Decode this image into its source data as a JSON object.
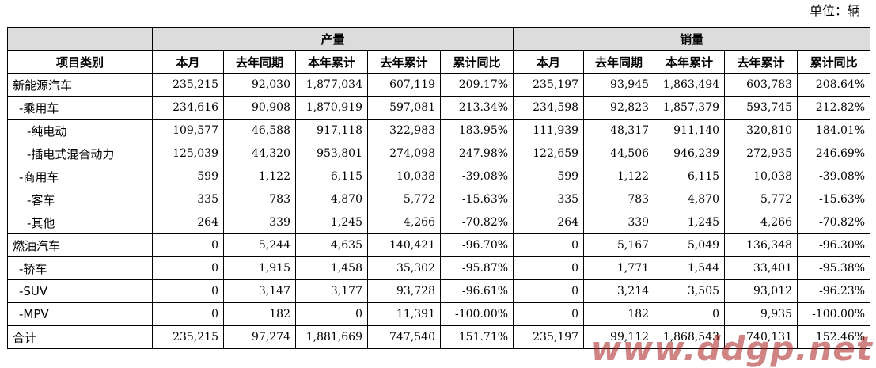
{
  "unit_label": "单位：辆",
  "header": {
    "col_category": "项目类别",
    "group_production": "产量",
    "group_sales": "销量",
    "sub": [
      "本月",
      "去年同期",
      "本年累计",
      "去年累计",
      "累计同比"
    ]
  },
  "rows": [
    {
      "name": "新能源汽车",
      "indent": 0,
      "p": [
        "235,215",
        "92,030",
        "1,877,034",
        "607,119",
        "209.17%"
      ],
      "s": [
        "235,197",
        "93,945",
        "1,863,494",
        "603,783",
        "208.64%"
      ]
    },
    {
      "name": "-乘用车",
      "indent": 1,
      "p": [
        "234,616",
        "90,908",
        "1,870,919",
        "597,081",
        "213.34%"
      ],
      "s": [
        "234,598",
        "92,823",
        "1,857,379",
        "593,745",
        "212.82%"
      ]
    },
    {
      "name": "-纯电动",
      "indent": 2,
      "p": [
        "109,577",
        "46,588",
        "917,118",
        "322,983",
        "183.95%"
      ],
      "s": [
        "111,939",
        "48,317",
        "911,140",
        "320,810",
        "184.01%"
      ]
    },
    {
      "name": "-插电式混合动力",
      "indent": 2,
      "p": [
        "125,039",
        "44,320",
        "953,801",
        "274,098",
        "247.98%"
      ],
      "s": [
        "122,659",
        "44,506",
        "946,239",
        "272,935",
        "246.69%"
      ]
    },
    {
      "name": "-商用车",
      "indent": 1,
      "p": [
        "599",
        "1,122",
        "6,115",
        "10,038",
        "-39.08%"
      ],
      "s": [
        "599",
        "1,122",
        "6,115",
        "10,038",
        "-39.08%"
      ]
    },
    {
      "name": "-客车",
      "indent": 2,
      "p": [
        "335",
        "783",
        "4,870",
        "5,772",
        "-15.63%"
      ],
      "s": [
        "335",
        "783",
        "4,870",
        "5,772",
        "-15.63%"
      ]
    },
    {
      "name": "-其他",
      "indent": 2,
      "p": [
        "264",
        "339",
        "1,245",
        "4,266",
        "-70.82%"
      ],
      "s": [
        "264",
        "339",
        "1,245",
        "4,266",
        "-70.82%"
      ]
    },
    {
      "name": "燃油汽车",
      "indent": 0,
      "p": [
        "0",
        "5,244",
        "4,635",
        "140,421",
        "-96.70%"
      ],
      "s": [
        "0",
        "5,167",
        "5,049",
        "136,348",
        "-96.30%"
      ]
    },
    {
      "name": "-轿车",
      "indent": 1,
      "p": [
        "0",
        "1,915",
        "1,458",
        "35,302",
        "-95.87%"
      ],
      "s": [
        "0",
        "1,771",
        "1,544",
        "33,401",
        "-95.38%"
      ]
    },
    {
      "name": "-SUV",
      "indent": 1,
      "p": [
        "0",
        "3,147",
        "3,177",
        "93,728",
        "-96.61%"
      ],
      "s": [
        "0",
        "3,214",
        "3,505",
        "93,012",
        "-96.23%"
      ]
    },
    {
      "name": "-MPV",
      "indent": 1,
      "p": [
        "0",
        "182",
        "0",
        "11,391",
        "-100.00%"
      ],
      "s": [
        "0",
        "182",
        "0",
        "9,935",
        "-100.00%"
      ]
    },
    {
      "name": "合计",
      "indent": 0,
      "p": [
        "235,215",
        "97,274",
        "1,881,669",
        "747,540",
        "151.71%"
      ],
      "s": [
        "235,197",
        "99,112",
        "1,868,543",
        "740,131",
        "152.46%"
      ]
    }
  ],
  "watermark": "www.ddgp.net",
  "colors": {
    "group_header_bg": "#dcdcdc",
    "border": "#000000",
    "watermark": "#aa1e1e"
  }
}
